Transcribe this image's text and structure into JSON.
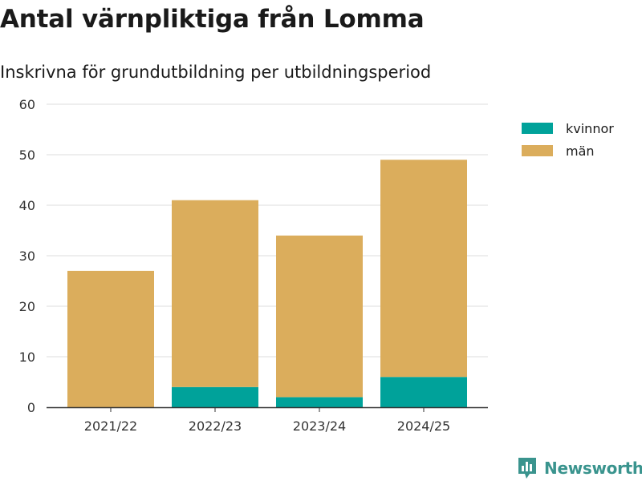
{
  "header": {
    "title": "Antal värnpliktiga från Lomma",
    "subtitle": "Inskrivna för grundutbildning per utbildningsperiod"
  },
  "chart_data": {
    "type": "bar",
    "stacked": true,
    "categories": [
      "2021/22",
      "2022/23",
      "2023/24",
      "2024/25"
    ],
    "series": [
      {
        "name": "kvinnor",
        "color": "#00a29a",
        "values": [
          0,
          4,
          2,
          6
        ]
      },
      {
        "name": "män",
        "color": "#dbad5c",
        "values": [
          27,
          37,
          32,
          43
        ]
      }
    ],
    "ylim": [
      0,
      60
    ],
    "yticks": [
      0,
      10,
      20,
      30,
      40,
      50,
      60
    ],
    "grid": true,
    "legend": "top-right"
  },
  "branding": {
    "name": "Newsworthy",
    "icon": "newsworthy-logo-icon",
    "color": "#3a948e"
  }
}
